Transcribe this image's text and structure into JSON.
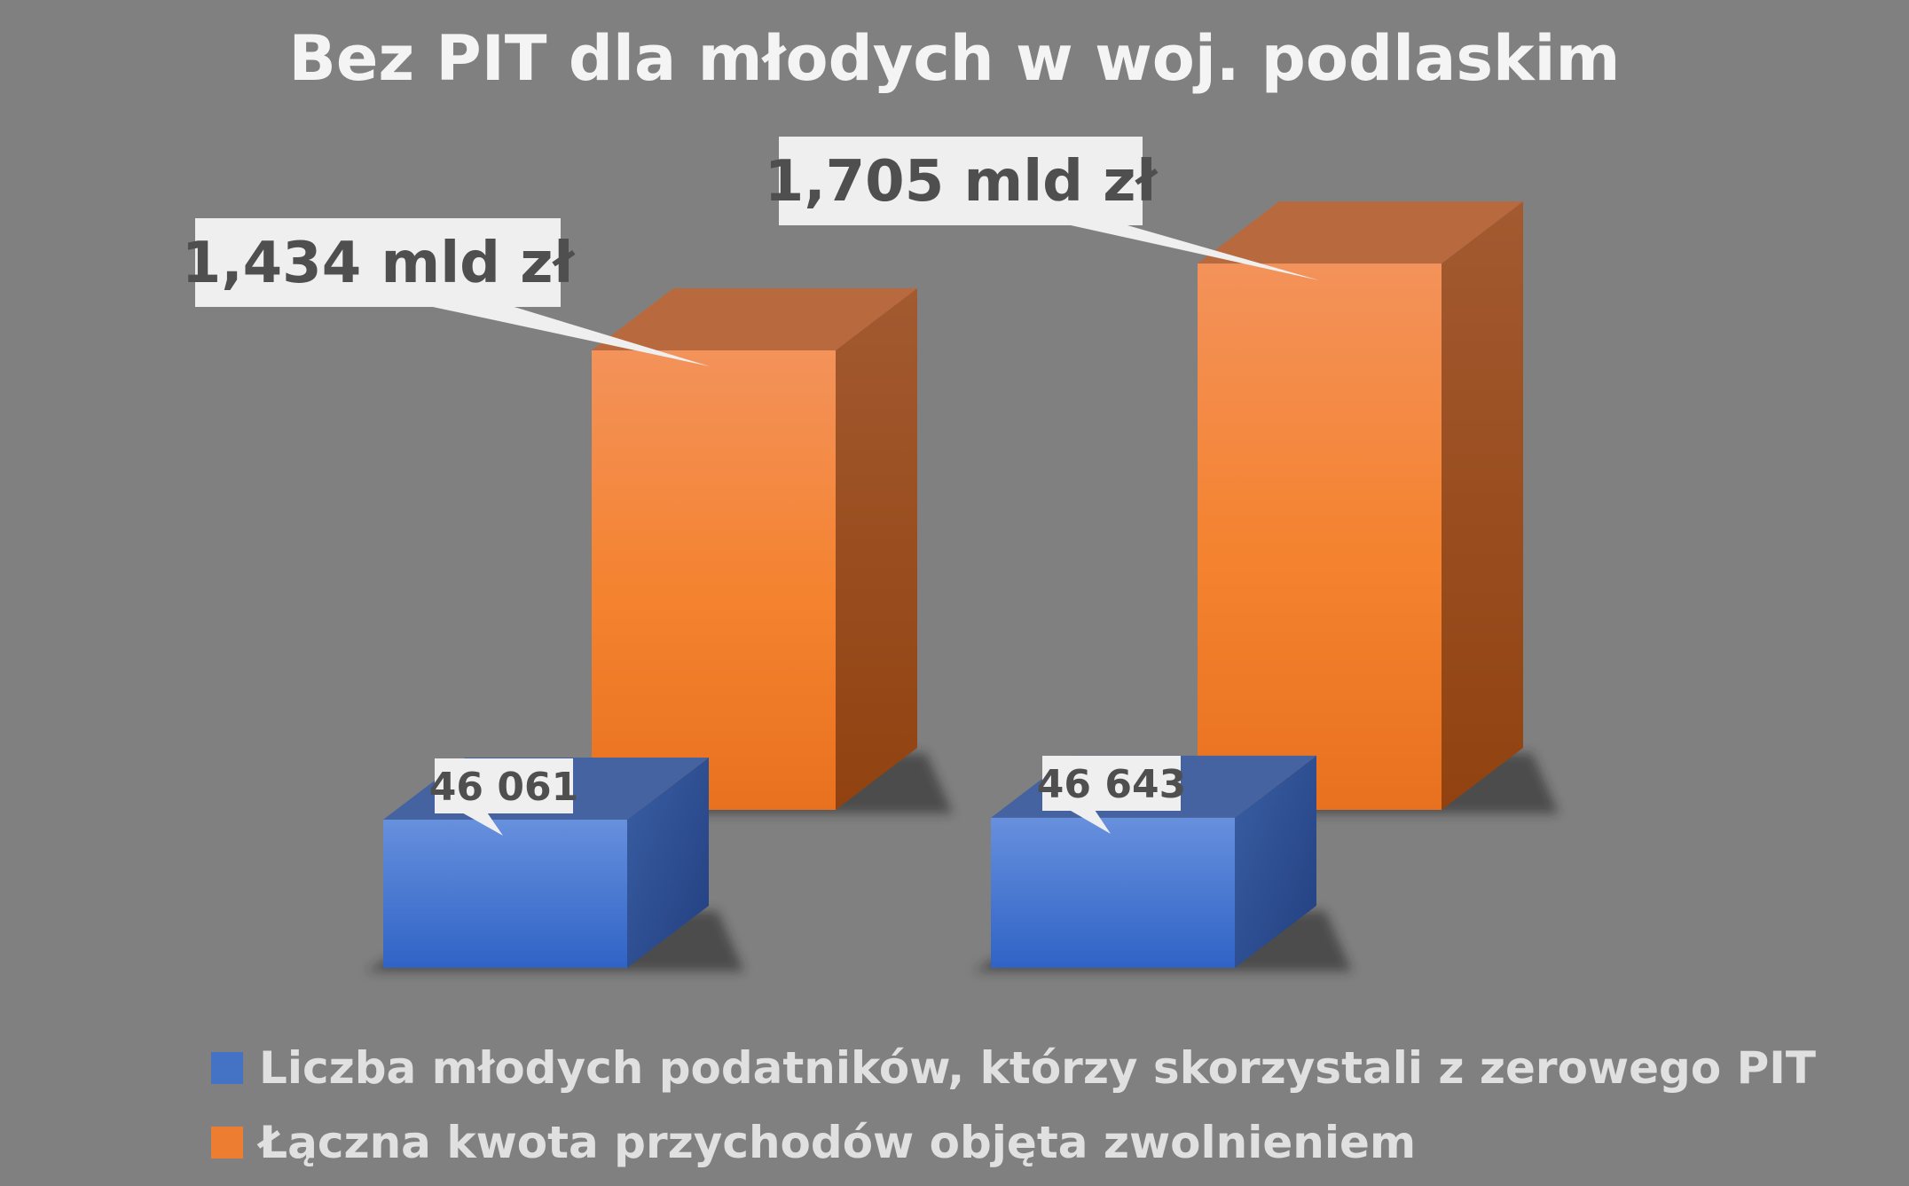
{
  "chart_data": {
    "type": "bar",
    "title": "Bez PIT dla młodych w woj. podlaskim",
    "categories": [
      "",
      ""
    ],
    "series": [
      {
        "name": "Liczba młodych podatników, którzy skorzystali z zerowego PIT",
        "color": "#4472c4",
        "values": [
          46061,
          46643
        ],
        "labels": [
          "46 061",
          "46 643"
        ]
      },
      {
        "name": "Łączna kwota przychodów objęta zwolnieniem",
        "color": "#ed7d31",
        "values": [
          1.434,
          1.705
        ],
        "labels": [
          "1,434 mld zł",
          "1,705 mld zł"
        ]
      }
    ],
    "grid": false,
    "legend": "bottom"
  }
}
